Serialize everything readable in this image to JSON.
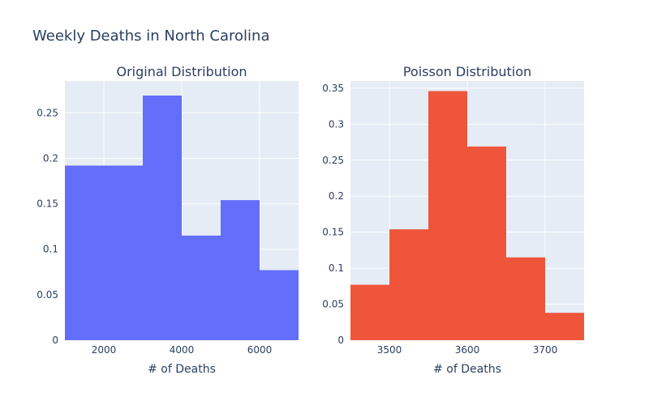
{
  "figure": {
    "title": "Weekly Deaths in North Carolina"
  },
  "colors": {
    "plot_bg": "#E5ECF6",
    "grid": "#ffffff",
    "text": "#2a3f5f"
  },
  "chart_data": [
    {
      "type": "bar",
      "subtype": "histogram",
      "title": "Original Distribution",
      "xlabel": "# of Deaths",
      "ylabel": "",
      "color": "#636EFA",
      "bins": [
        {
          "x0": 1000,
          "x1": 3000,
          "value": 0.192
        },
        {
          "x0": 3000,
          "x1": 4000,
          "value": 0.269
        },
        {
          "x0": 4000,
          "x1": 5000,
          "value": 0.115
        },
        {
          "x0": 5000,
          "x1": 6000,
          "value": 0.154
        },
        {
          "x0": 6000,
          "x1": 7000,
          "value": 0.077
        }
      ],
      "xlim": [
        1000,
        7000
      ],
      "ylim": [
        0,
        0.285
      ],
      "xticks": [
        2000,
        4000,
        6000
      ],
      "xtick_labels": [
        "2000",
        "4000",
        "6000"
      ],
      "yticks": [
        0,
        0.05,
        0.1,
        0.15,
        0.2,
        0.25
      ],
      "ytick_labels": [
        "0",
        "0.05",
        "0.1",
        "0.15",
        "0.2",
        "0.25"
      ],
      "grid": true
    },
    {
      "type": "bar",
      "subtype": "histogram",
      "title": "Poisson Distribution",
      "xlabel": "# of Deaths",
      "ylabel": "",
      "color": "#EF553B",
      "bins": [
        {
          "x0": 3450,
          "x1": 3500,
          "value": 0.077
        },
        {
          "x0": 3500,
          "x1": 3550,
          "value": 0.154
        },
        {
          "x0": 3550,
          "x1": 3600,
          "value": 0.346
        },
        {
          "x0": 3600,
          "x1": 3650,
          "value": 0.269
        },
        {
          "x0": 3650,
          "x1": 3700,
          "value": 0.115
        },
        {
          "x0": 3700,
          "x1": 3750,
          "value": 0.038
        }
      ],
      "xlim": [
        3450,
        3750
      ],
      "ylim": [
        0,
        0.36
      ],
      "xticks": [
        3500,
        3600,
        3700
      ],
      "xtick_labels": [
        "3500",
        "3600",
        "3700"
      ],
      "yticks": [
        0,
        0.05,
        0.1,
        0.15,
        0.2,
        0.25,
        0.3,
        0.35
      ],
      "ytick_labels": [
        "0",
        "0.05",
        "0.1",
        "0.15",
        "0.2",
        "0.25",
        "0.3",
        "0.35"
      ],
      "grid": true
    }
  ]
}
